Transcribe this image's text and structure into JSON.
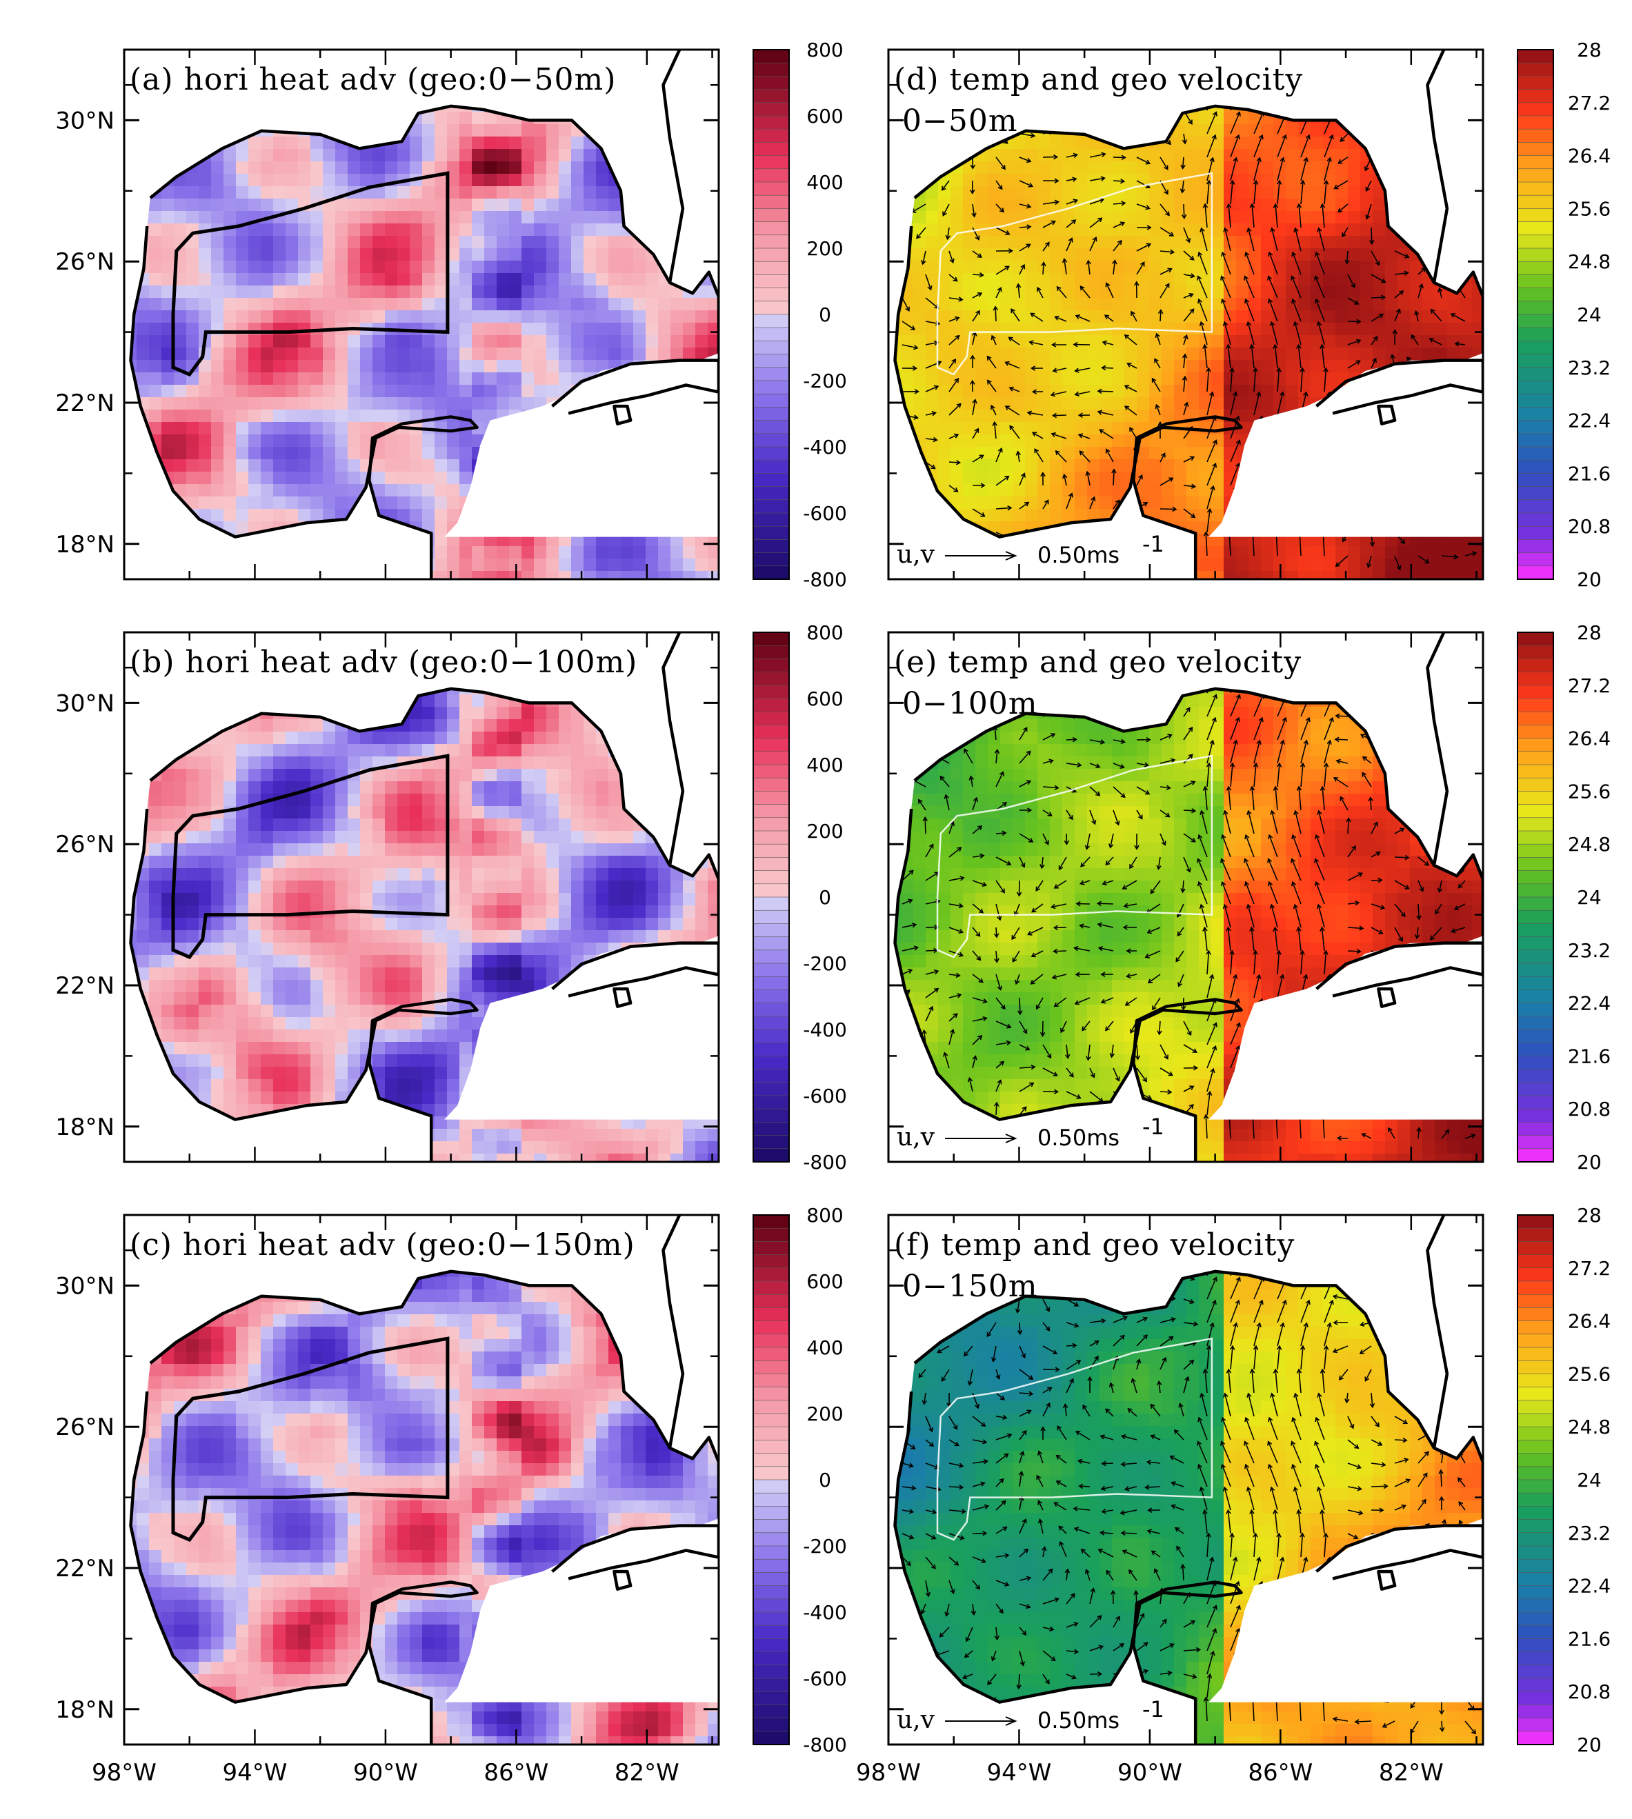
{
  "figure": {
    "panels": [
      {
        "id": "a",
        "title": "(a) hori heat adv (geo:0−50m)",
        "subtitle": "",
        "field": "heat_adv"
      },
      {
        "id": "d",
        "title": "(d) temp and geo velocity",
        "subtitle": "0−50m",
        "field": "temp",
        "temp_level": 0
      },
      {
        "id": "b",
        "title": "(b) hori heat adv (geo:0−100m)",
        "subtitle": "",
        "field": "heat_adv"
      },
      {
        "id": "e",
        "title": "(e) temp and geo velocity",
        "subtitle": "0−100m",
        "field": "temp",
        "temp_level": 1
      },
      {
        "id": "c",
        "title": "(c) hori heat adv (geo:0−150m)",
        "subtitle": "",
        "field": "heat_adv"
      },
      {
        "id": "f",
        "title": "(f) temp and geo velocity",
        "subtitle": "0−150m",
        "field": "temp",
        "temp_level": 2
      }
    ],
    "lat_ticks": [
      "30°N",
      "26°N",
      "22°N",
      "18°N"
    ],
    "lon_ticks": [
      "98°W",
      "94°W",
      "90°W",
      "86°W",
      "82°W"
    ],
    "lat_values": [
      30,
      26,
      22,
      18
    ],
    "lon_values": [
      -98,
      -94,
      -90,
      -86,
      -82
    ],
    "map_extent": {
      "lon": [
        -98,
        -79.8
      ],
      "lat": [
        17,
        32
      ]
    },
    "heat_colorbar": {
      "labels": [
        "800",
        "600",
        "400",
        "200",
        "0",
        "-200",
        "-400",
        "-600",
        "-800"
      ],
      "range": [
        -800,
        800
      ]
    },
    "temp_colorbar": {
      "labels": [
        "28",
        "27.2",
        "26.4",
        "25.6",
        "24.8",
        "24",
        "23.2",
        "22.4",
        "21.6",
        "20.8",
        "20"
      ],
      "range": [
        20,
        28
      ]
    },
    "vector_key": {
      "label": "u,v",
      "value": "0.50ms",
      "unit_exp": "-1"
    },
    "colors": {
      "heat_pos": "#f7b7be",
      "heat_pos_strong": "#e84a6e",
      "heat_neg": "#bcb4f0",
      "heat_neg_strong": "#7e5ce0",
      "land": "#ffffff",
      "coast": "#000000"
    }
  }
}
